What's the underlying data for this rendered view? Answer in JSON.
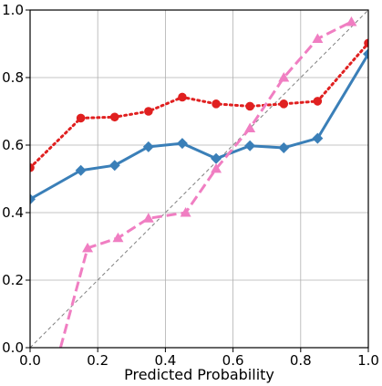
{
  "chart_data": {
    "type": "line",
    "title": "",
    "xlabel": "Predicted Probability",
    "ylabel": "",
    "xlim": [
      0.0,
      1.0
    ],
    "ylim": [
      0.0,
      1.0
    ],
    "xticks": [
      "0.0",
      "0.2",
      "0.4",
      "0.6",
      "0.8",
      "1.0"
    ],
    "yticks": [
      "0.0",
      "0.2",
      "0.4",
      "0.6",
      "0.8",
      "1.0"
    ],
    "grid": true,
    "legend": "none",
    "reference_line": {
      "points": [
        [
          0.0,
          0.0
        ],
        [
          1.0,
          1.0
        ]
      ],
      "color": "#808080",
      "style": "dashed"
    },
    "series": [
      {
        "color": "#3a7fb8",
        "style": "solid",
        "marker": "diamond",
        "x": [
          0.0,
          0.15,
          0.25,
          0.35,
          0.45,
          0.55,
          0.65,
          0.75,
          0.85,
          1.0
        ],
        "y": [
          0.44,
          0.525,
          0.54,
          0.595,
          0.605,
          0.56,
          0.598,
          0.592,
          0.62,
          0.87
        ]
      },
      {
        "color": "#e02020",
        "style": "dotted",
        "marker": "circle",
        "x": [
          0.0,
          0.15,
          0.25,
          0.35,
          0.45,
          0.55,
          0.65,
          0.75,
          0.85,
          1.0
        ],
        "y": [
          0.533,
          0.68,
          0.683,
          0.7,
          0.742,
          0.722,
          0.715,
          0.722,
          0.73,
          0.902
        ]
      },
      {
        "color": "#f07ec2",
        "style": "dashed",
        "marker": "triangle",
        "x": [
          0.09,
          0.17,
          0.26,
          0.35,
          0.46,
          0.55,
          0.65,
          0.75,
          0.85,
          0.95
        ],
        "y": [
          0.0,
          0.295,
          0.325,
          0.383,
          0.4,
          0.53,
          0.65,
          0.8,
          0.915,
          0.965
        ],
        "marker_from_index": 1
      }
    ]
  }
}
